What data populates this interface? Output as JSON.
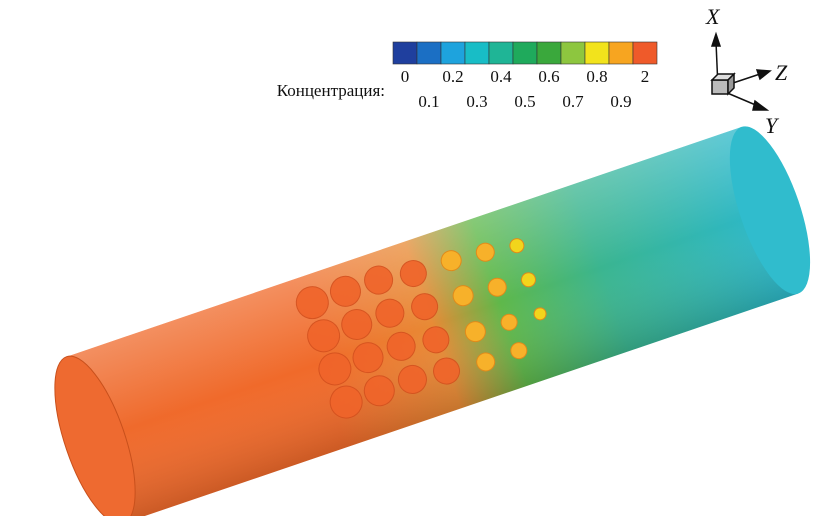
{
  "colorbar": {
    "label": "Концентрация:",
    "labels": [
      "0",
      "0.1",
      "0.2",
      "0.3",
      "0.4",
      "0.5",
      "0.6",
      "0.7",
      "0.8",
      "0.9",
      "2"
    ],
    "colors": [
      "#1f3f9e",
      "#1b6fc4",
      "#1ea3dd",
      "#18bdc6",
      "#1fb596",
      "#1faa5c",
      "#3aa83c",
      "#8dc63f",
      "#f2e31c",
      "#f7a520",
      "#ef5a2a"
    ]
  },
  "axes": {
    "x": "X",
    "z": "Z",
    "y": "Y"
  }
}
